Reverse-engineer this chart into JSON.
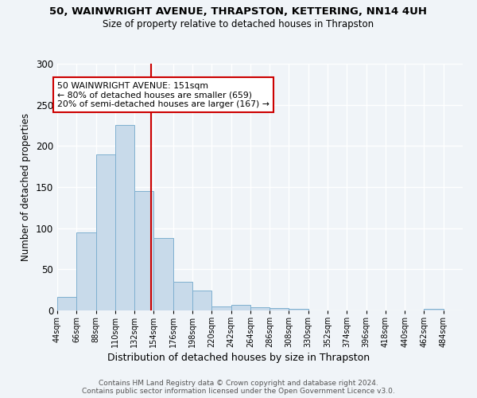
{
  "title1": "50, WAINWRIGHT AVENUE, THRAPSTON, KETTERING, NN14 4UH",
  "title2": "Size of property relative to detached houses in Thrapston",
  "xlabel": "Distribution of detached houses by size in Thrapston",
  "ylabel": "Number of detached properties",
  "bin_labels": [
    "44sqm",
    "66sqm",
    "88sqm",
    "110sqm",
    "132sqm",
    "154sqm",
    "176sqm",
    "198sqm",
    "220sqm",
    "242sqm",
    "264sqm",
    "286sqm",
    "308sqm",
    "330sqm",
    "352sqm",
    "374sqm",
    "396sqm",
    "418sqm",
    "440sqm",
    "462sqm",
    "484sqm"
  ],
  "bin_edges": [
    44,
    66,
    88,
    110,
    132,
    154,
    176,
    198,
    220,
    242,
    264,
    286,
    308,
    330,
    352,
    374,
    396,
    418,
    440,
    462,
    484,
    506
  ],
  "values": [
    16,
    95,
    190,
    225,
    145,
    88,
    35,
    24,
    5,
    7,
    4,
    3,
    2,
    0,
    0,
    0,
    0,
    0,
    0,
    2,
    0
  ],
  "bar_color": "#c8daea",
  "bar_edge_color": "#7fb0d0",
  "vline_x": 151,
  "vline_color": "#cc0000",
  "annotation_text": "50 WAINWRIGHT AVENUE: 151sqm\n← 80% of detached houses are smaller (659)\n20% of semi-detached houses are larger (167) →",
  "annotation_box_color": "white",
  "annotation_box_edge_color": "#cc0000",
  "ylim": [
    0,
    300
  ],
  "footnote": "Contains HM Land Registry data © Crown copyright and database right 2024.\nContains public sector information licensed under the Open Government Licence v3.0.",
  "background_color": "#f0f4f8",
  "grid_color": "white"
}
